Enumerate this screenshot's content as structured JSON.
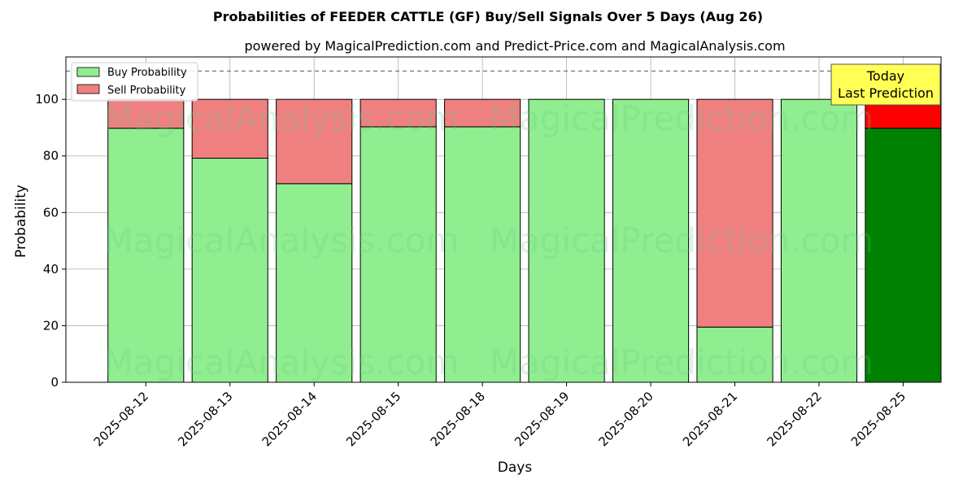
{
  "chart_data": {
    "type": "bar",
    "stacked": true,
    "title": "Probabilities of FEEDER CATTLE (GF) Buy/Sell Signals Over 5 Days (Aug 26)",
    "subtitle": "powered by MagicalPrediction.com and Predict-Price.com and MagicalAnalysis.com",
    "xlabel": "Days",
    "ylabel": "Probability",
    "ylim": [
      0,
      115
    ],
    "yticks": [
      0,
      20,
      40,
      60,
      80,
      100
    ],
    "reference_line": 110,
    "grid": true,
    "legend_position": "top-left",
    "categories": [
      "2025-08-12",
      "2025-08-13",
      "2025-08-14",
      "2025-08-15",
      "2025-08-18",
      "2025-08-19",
      "2025-08-20",
      "2025-08-21",
      "2025-08-22",
      "2025-08-25"
    ],
    "series": [
      {
        "name": "Buy Probability",
        "color": "#90ee90",
        "highlight_color": "#008000",
        "values": [
          89.8,
          79.2,
          70.2,
          90.3,
          90.3,
          100,
          100,
          19.5,
          100,
          89.8
        ]
      },
      {
        "name": "Sell Probability",
        "color": "#f08080",
        "highlight_color": "#ff0000",
        "values": [
          10.2,
          20.8,
          29.8,
          9.7,
          9.7,
          0,
          0,
          80.5,
          0,
          10.2
        ]
      }
    ],
    "highlight_index": 9,
    "annotation": {
      "line1": "Today",
      "line2": "Last Prediction",
      "color": "#ffff55"
    },
    "watermarks": [
      "MagicalAnalysis.com",
      "MagicalPrediction.com"
    ]
  }
}
